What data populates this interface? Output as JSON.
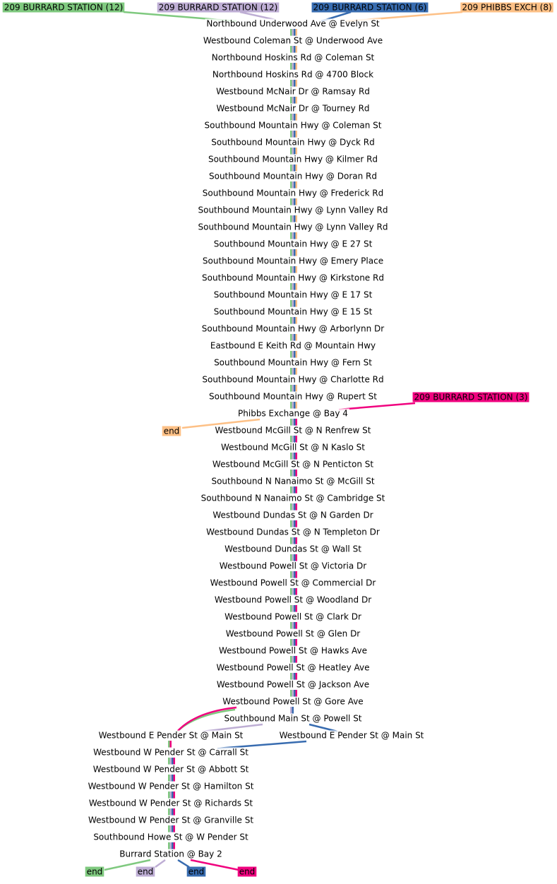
{
  "routes": [
    {
      "name": "209 BURRARD STATION (12)",
      "color": "#7fc97f"
    },
    {
      "name": "209 BURRARD STATION (12)",
      "color": "#beaed4"
    },
    {
      "name": "209 BURRARD STATION (6)",
      "color": "#386cb0"
    },
    {
      "name": "209 PHIBBS EXCH (8)",
      "color": "#fdc086"
    },
    {
      "name": "209 BURRARD STATION (3)",
      "color": "#f0027f"
    }
  ],
  "stops": [
    "Northbound Underwood Ave @ Evelyn St",
    "Westbound Coleman St @ Underwood Ave",
    "Northbound Hoskins Rd @ Coleman St",
    "Northbound Hoskins Rd @ 4700 Block",
    "Westbound McNair Dr @ Ramsay Rd",
    "Westbound McNair Dr @ Tourney Rd",
    "Southbound Mountain Hwy @ Coleman St",
    "Southbound Mountain Hwy @ Dyck Rd",
    "Southbound Mountain Hwy @ Kilmer Rd",
    "Southbound Mountain Hwy @ Doran Rd",
    "Southbound Mountain Hwy @ Frederick Rd",
    "Southbound Mountain Hwy @ Lynn Valley Rd",
    "Southbound Mountain Hwy @ Lynn Valley Rd",
    "Southbound Mountain Hwy @ E 27 St",
    "Southbound Mountain Hwy @ Emery Place",
    "Southbound Mountain Hwy @ Kirkstone Rd",
    "Southbound Mountain Hwy @ E 17 St",
    "Southbound Mountain Hwy @ E 15 St",
    "Southbound Mountain Hwy @ Arborlynn Dr",
    "Eastbound E Keith Rd @ Mountain Hwy",
    "Southbound Mountain Hwy @ Fern St",
    "Southbound Mountain Hwy @ Charlotte Rd",
    "Southbound Mountain Hwy @ Rupert St",
    "Phibbs Exchange @ Bay 4",
    "Westbound McGill St @ N Renfrew St",
    "Westbound McGill St @ N Kaslo St",
    "Westbound McGill St @ N Penticton St",
    "Southbound N Nanaimo St @ McGill St",
    "Southbound N Nanaimo St @ Cambridge St",
    "Westbound Dundas St @ N Garden Dr",
    "Westbound Dundas St @ N Templeton Dr",
    "Westbound Dundas St @ Wall St",
    "Westbound Powell St @ Victoria Dr",
    "Westbound Powell St @ Commercial Dr",
    "Westbound Powell St @ Woodland Dr",
    "Westbound Powell St @ Clark Dr",
    "Westbound Powell St @ Glen Dr",
    "Westbound Powell St @ Hawks Ave",
    "Westbound Powell St @ Heatley Ave",
    "Westbound Powell St @ Jackson Ave",
    "Westbound Powell St @ Gore Ave",
    "Southbound Main St @ Powell St",
    "Westbound E Pender St @ Main St",
    "Westbound E Pender St @ Main St",
    "Westbound W Pender St @ Carrall St",
    "Westbound W Pender St @ Abbott St",
    "Westbound W Pender St @ Hamilton St",
    "Westbound W Pender St @ Richards St",
    "Westbound W Pender St @ Granville St",
    "Southbound Howe St @ W Pender St",
    "Burrard Station @ Bay 2"
  ],
  "ends": [
    "end",
    "end",
    "end",
    "end",
    "end"
  ]
}
